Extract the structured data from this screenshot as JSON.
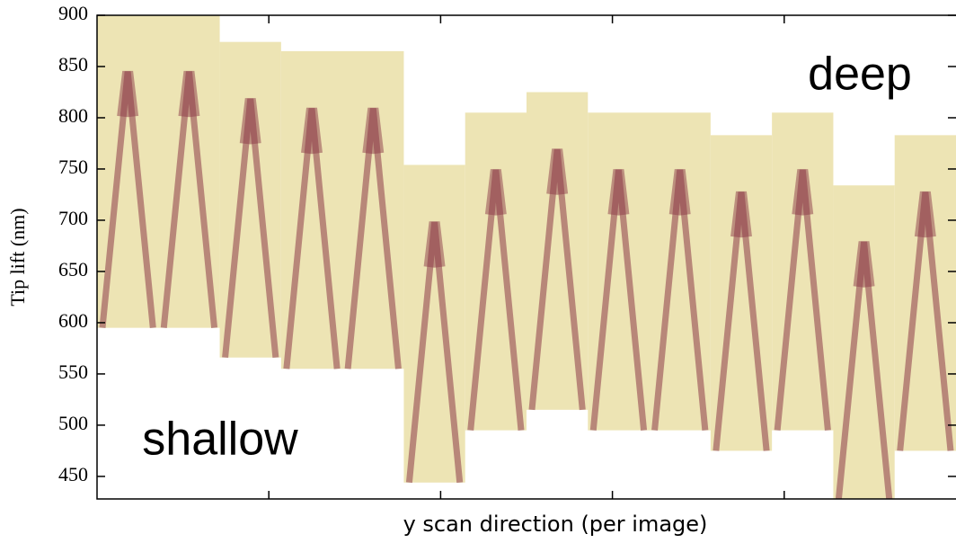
{
  "chart_data": {
    "type": "heatmap",
    "x_label": "y scan direction (per image)",
    "y_label": "Tip lift (nm)",
    "annotations": [
      "deep",
      "shallow"
    ],
    "xlim": [
      0,
      14
    ],
    "xticks": [
      2.8,
      5.6,
      8.4,
      11.2
    ],
    "ylim": [
      428,
      900
    ],
    "yticks": [
      450,
      500,
      550,
      600,
      650,
      700,
      750,
      800,
      850,
      900
    ],
    "color": "#ede4b4",
    "streak_color": "#8c3a48",
    "blocks": [
      {
        "x": [
          0,
          2
        ],
        "y": [
          595,
          900
        ]
      },
      {
        "x": [
          2,
          3
        ],
        "y": [
          566,
          874
        ]
      },
      {
        "x": [
          3,
          5
        ],
        "y": [
          555,
          865
        ]
      },
      {
        "x": [
          5,
          6
        ],
        "y": [
          444,
          754
        ]
      },
      {
        "x": [
          6,
          7
        ],
        "y": [
          495,
          805
        ]
      },
      {
        "x": [
          7,
          8
        ],
        "y": [
          515,
          825
        ]
      },
      {
        "x": [
          8,
          10
        ],
        "y": [
          495,
          805
        ]
      },
      {
        "x": [
          10,
          11
        ],
        "y": [
          475,
          783
        ]
      },
      {
        "x": [
          11,
          12
        ],
        "y": [
          495,
          805
        ]
      },
      {
        "x": [
          12,
          13
        ],
        "y": [
          428,
          734
        ]
      },
      {
        "x": [
          13,
          14
        ],
        "y": [
          475,
          783
        ]
      }
    ]
  }
}
